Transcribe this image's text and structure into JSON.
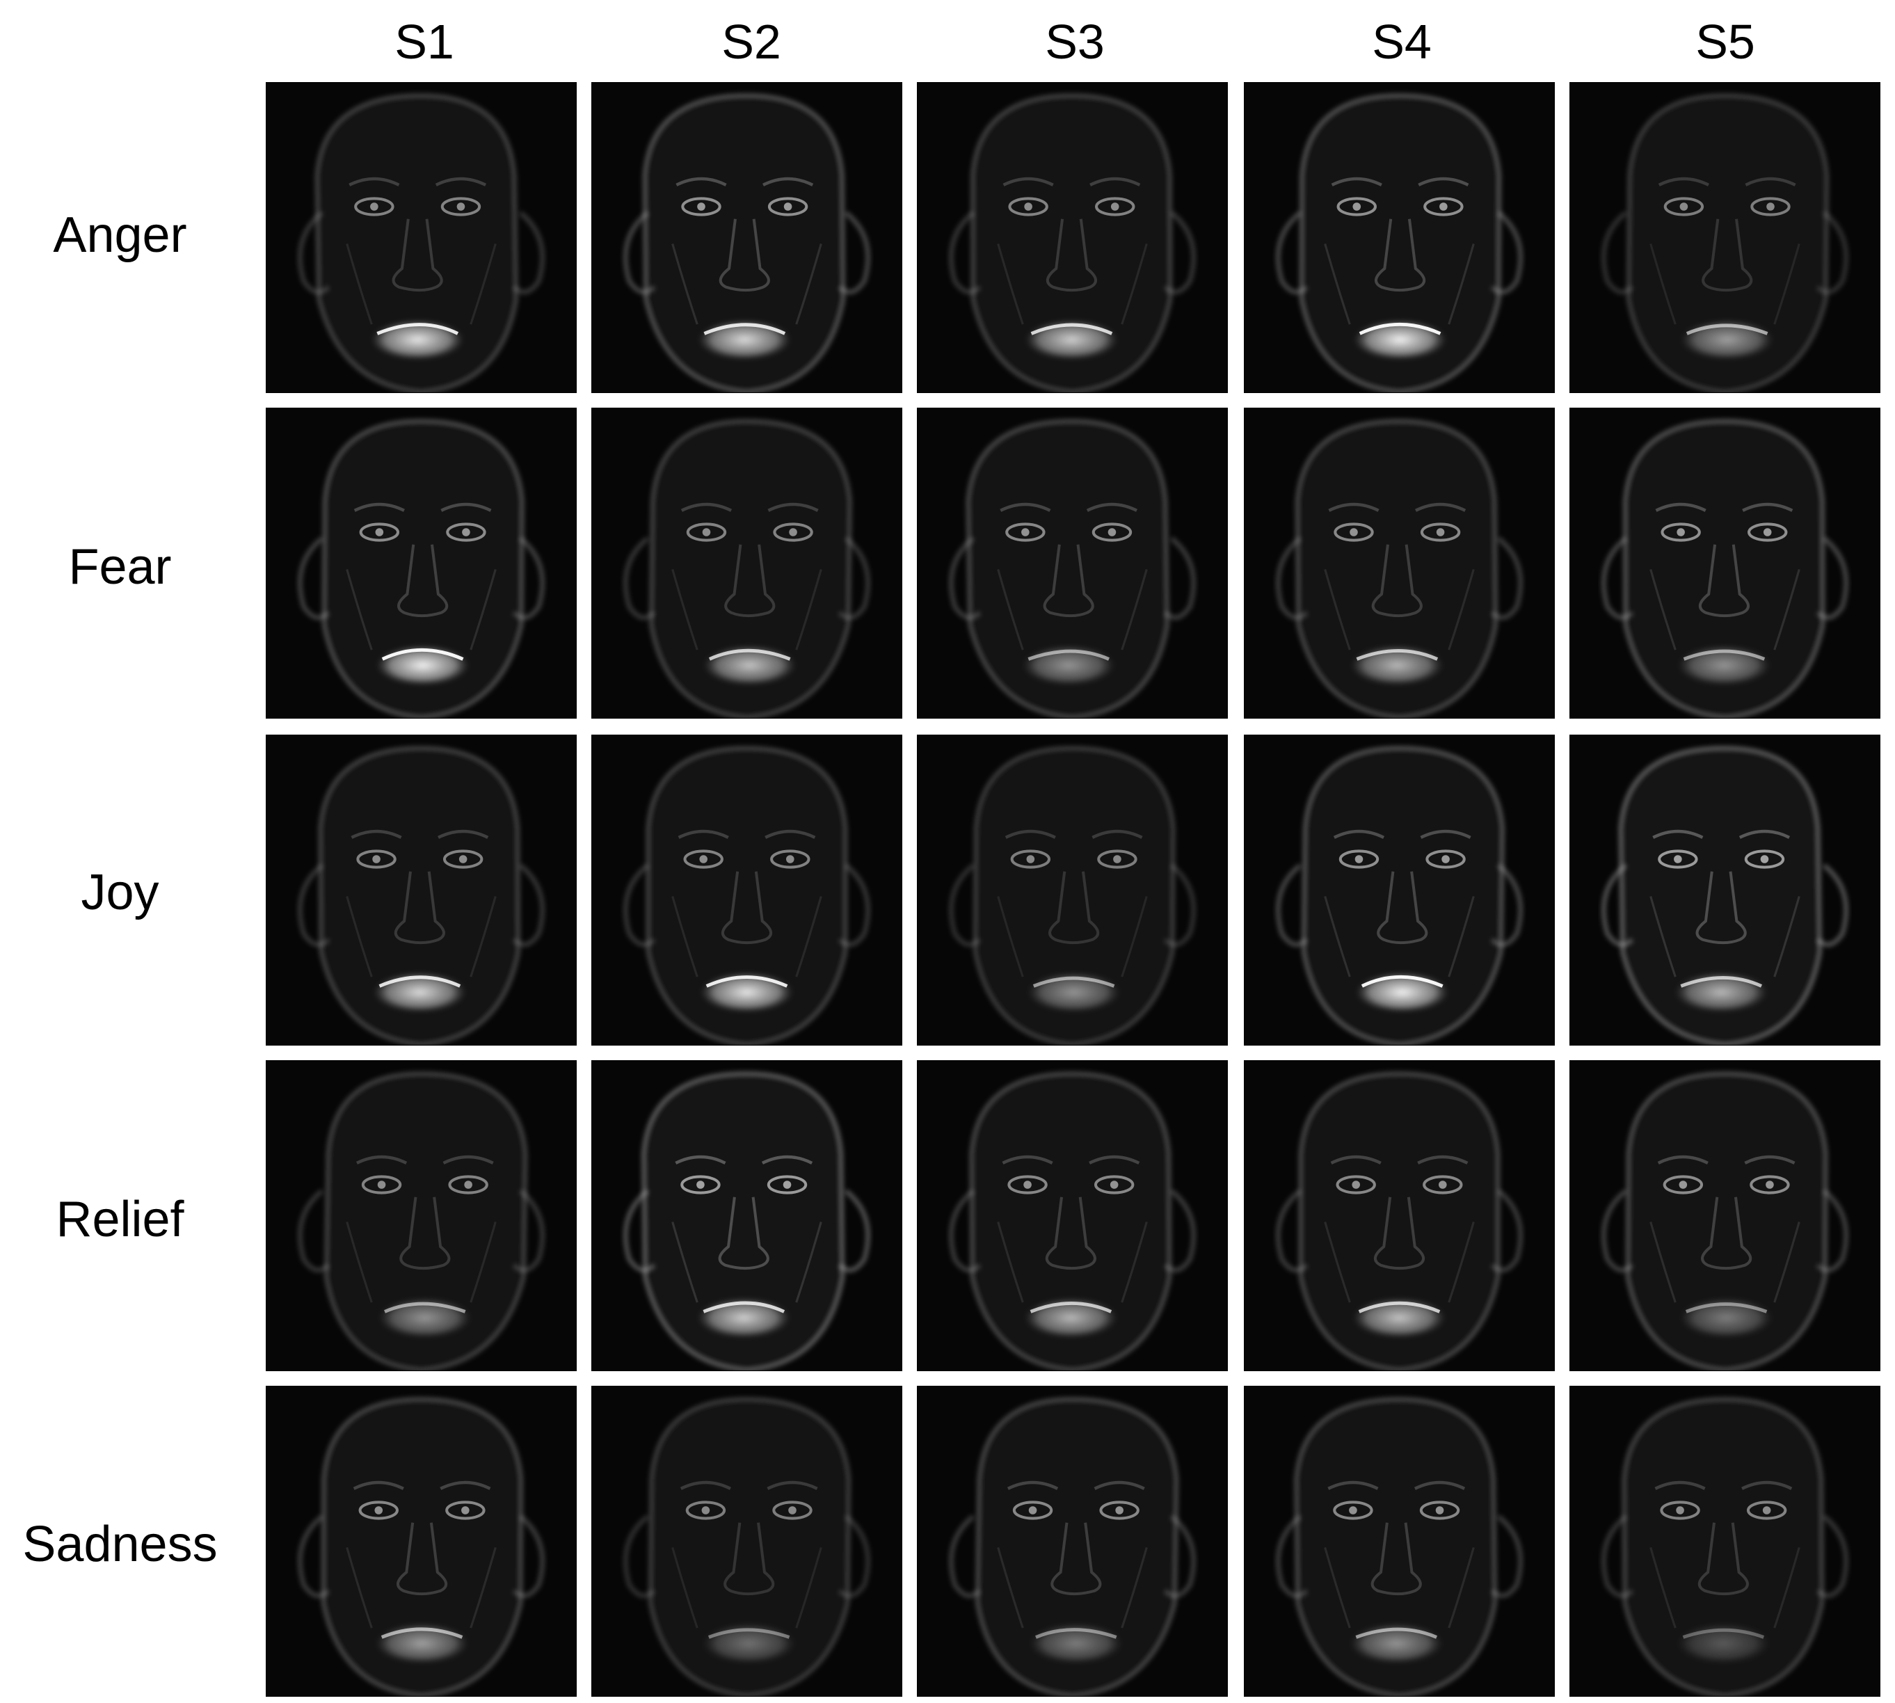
{
  "columns": [
    "S1",
    "S2",
    "S3",
    "S4",
    "S5"
  ],
  "rows": [
    "Anger",
    "Fear",
    "Joy",
    "Relief",
    "Sadness"
  ],
  "colors": {
    "background": "#ffffff",
    "cell_background": "#050505",
    "highlight": "#ffffff",
    "border": "#000000"
  },
  "mouth_brightness": {
    "Anger": [
      0.9,
      0.85,
      0.8,
      0.95,
      0.6
    ],
    "Fear": [
      0.95,
      0.75,
      0.55,
      0.7,
      0.55
    ],
    "Joy": [
      0.85,
      0.9,
      0.55,
      0.95,
      0.7
    ],
    "Relief": [
      0.55,
      0.8,
      0.7,
      0.75,
      0.45
    ],
    "Sadness": [
      0.6,
      0.4,
      0.45,
      0.55,
      0.3
    ]
  },
  "face_brightness": {
    "Anger": [
      0.45,
      0.6,
      0.45,
      0.6,
      0.4
    ],
    "Fear": [
      0.55,
      0.45,
      0.5,
      0.5,
      0.6
    ],
    "Joy": [
      0.45,
      0.45,
      0.4,
      0.6,
      0.7
    ],
    "Relief": [
      0.45,
      0.7,
      0.5,
      0.5,
      0.55
    ],
    "Sadness": [
      0.5,
      0.4,
      0.5,
      0.5,
      0.45
    ]
  }
}
